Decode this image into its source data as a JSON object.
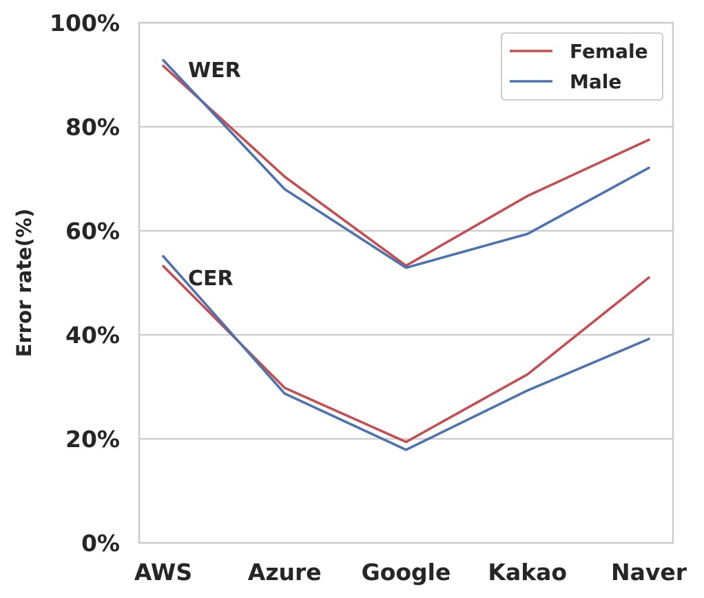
{
  "chart_data": {
    "type": "line",
    "categories": [
      "AWS",
      "Azure",
      "Google",
      "Kakao",
      "Naver"
    ],
    "ylabel": "Error rate(%)",
    "xlabel": "",
    "ylim": [
      0,
      100
    ],
    "yticks": [
      "0%",
      "20%",
      "40%",
      "60%",
      "80%",
      "100%"
    ],
    "ytick_values": [
      0,
      20,
      40,
      60,
      80,
      100
    ],
    "grid": "horizontal",
    "legend": {
      "placement": "top-right",
      "entries": [
        {
          "name": "Female",
          "color": "#c44e52"
        },
        {
          "name": "Male",
          "color": "#4c72b0"
        }
      ]
    },
    "annotations": [
      {
        "text": "WER",
        "x": "AWS",
        "y": 91
      },
      {
        "text": "CER",
        "x": "AWS",
        "y": 51
      }
    ],
    "series": [
      {
        "name": "Female",
        "metric": "WER",
        "color": "#c44e52",
        "values": [
          91.7,
          70.4,
          53.3,
          66.7,
          77.5
        ]
      },
      {
        "name": "Male",
        "metric": "WER",
        "color": "#4c72b0",
        "values": [
          92.8,
          68.0,
          52.9,
          59.4,
          72.1
        ]
      },
      {
        "name": "Female",
        "metric": "CER",
        "color": "#c44e52",
        "values": [
          53.2,
          29.8,
          19.4,
          32.4,
          51.0
        ]
      },
      {
        "name": "Male",
        "metric": "CER",
        "color": "#4c72b0",
        "values": [
          55.1,
          28.7,
          17.9,
          29.3,
          39.2
        ]
      }
    ]
  }
}
